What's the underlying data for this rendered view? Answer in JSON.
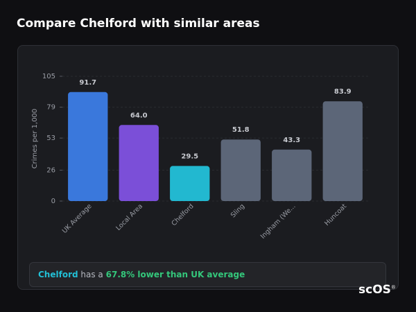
{
  "title": "Compare Chelford with similar areas",
  "chart_data": {
    "type": "bar",
    "y_label": "Crimes per 1,000",
    "categories": [
      "UK Average",
      "Local Area",
      "Chelford",
      "Sling",
      "Ingham (We...",
      "Huncoat"
    ],
    "values": [
      91.7,
      64.0,
      29.5,
      51.8,
      43.3,
      83.9
    ],
    "value_labels": [
      "91.7",
      "64.0",
      "29.5",
      "51.8",
      "43.3",
      "83.9"
    ],
    "colors": [
      "#3a78dc",
      "#7b4fd8",
      "#22b8d0",
      "#5c6678",
      "#5c6678",
      "#5c6678"
    ],
    "ylim": [
      0,
      105
    ],
    "yticks": [
      0,
      26,
      53,
      79,
      105
    ],
    "grid": true
  },
  "footer": {
    "area": "Chelford",
    "text": "has a",
    "highlight": "67.8% lower than UK average"
  },
  "brand": {
    "name": "scOS",
    "mark": "®"
  }
}
